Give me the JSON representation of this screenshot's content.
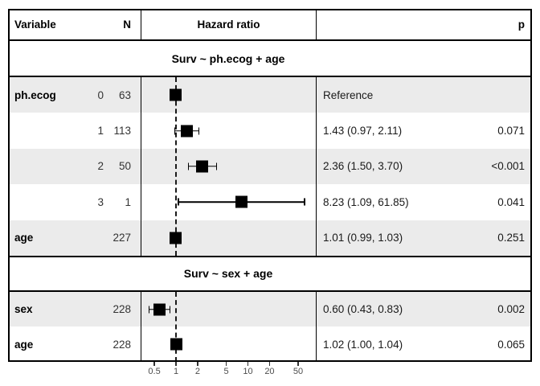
{
  "header": {
    "variable": "Variable",
    "n": "N",
    "hazard_ratio": "Hazard ratio",
    "p": "p"
  },
  "colors": {
    "row_shade": "#ebebeb",
    "border": "#000000",
    "marker": "#000000",
    "reference_line": "#1a1a1a",
    "axis_label": "#4d4d4d"
  },
  "axis": {
    "scale": "log10",
    "reference_value": 1,
    "ticks": [
      0.5,
      1,
      2,
      5,
      10,
      20,
      50
    ],
    "tick_labels": [
      "0.5",
      "1",
      "2",
      "5",
      "10",
      "20",
      "50"
    ]
  },
  "chart_data": {
    "type": "forest",
    "xlim": [
      0.32,
      88
    ],
    "sections": [
      {
        "title": "Surv ~ ph.ecog + age",
        "rows": [
          {
            "variable": "ph.ecog",
            "level": "0",
            "n": "63",
            "hr": 1.0,
            "ci_low": null,
            "ci_high": null,
            "estimate_label": "Reference",
            "p": "",
            "shaded": true
          },
          {
            "variable": "",
            "level": "1",
            "n": "113",
            "hr": 1.43,
            "ci_low": 0.97,
            "ci_high": 2.11,
            "estimate_label": "1.43 (0.97, 2.11)",
            "p": "0.071",
            "shaded": false
          },
          {
            "variable": "",
            "level": "2",
            "n": "50",
            "hr": 2.36,
            "ci_low": 1.5,
            "ci_high": 3.7,
            "estimate_label": "2.36 (1.50, 3.70)",
            "p": "<0.001",
            "shaded": true
          },
          {
            "variable": "",
            "level": "3",
            "n": "1",
            "hr": 8.23,
            "ci_low": 1.09,
            "ci_high": 61.85,
            "estimate_label": "8.23 (1.09, 61.85)",
            "p": "0.041",
            "shaded": false
          },
          {
            "variable": "age",
            "level": "",
            "n": "227",
            "hr": 1.01,
            "ci_low": 0.99,
            "ci_high": 1.03,
            "estimate_label": "1.01 (0.99, 1.03)",
            "p": "0.251",
            "shaded": true
          }
        ]
      },
      {
        "title": "Surv ~ sex + age",
        "rows": [
          {
            "variable": "sex",
            "level": "",
            "n": "228",
            "hr": 0.6,
            "ci_low": 0.43,
            "ci_high": 0.83,
            "estimate_label": "0.60 (0.43, 0.83)",
            "p": "0.002",
            "shaded": true
          },
          {
            "variable": "age",
            "level": "",
            "n": "228",
            "hr": 1.02,
            "ci_low": 1.0,
            "ci_high": 1.04,
            "estimate_label": "1.02 (1.00, 1.04)",
            "p": "0.065",
            "shaded": false
          }
        ]
      }
    ]
  }
}
